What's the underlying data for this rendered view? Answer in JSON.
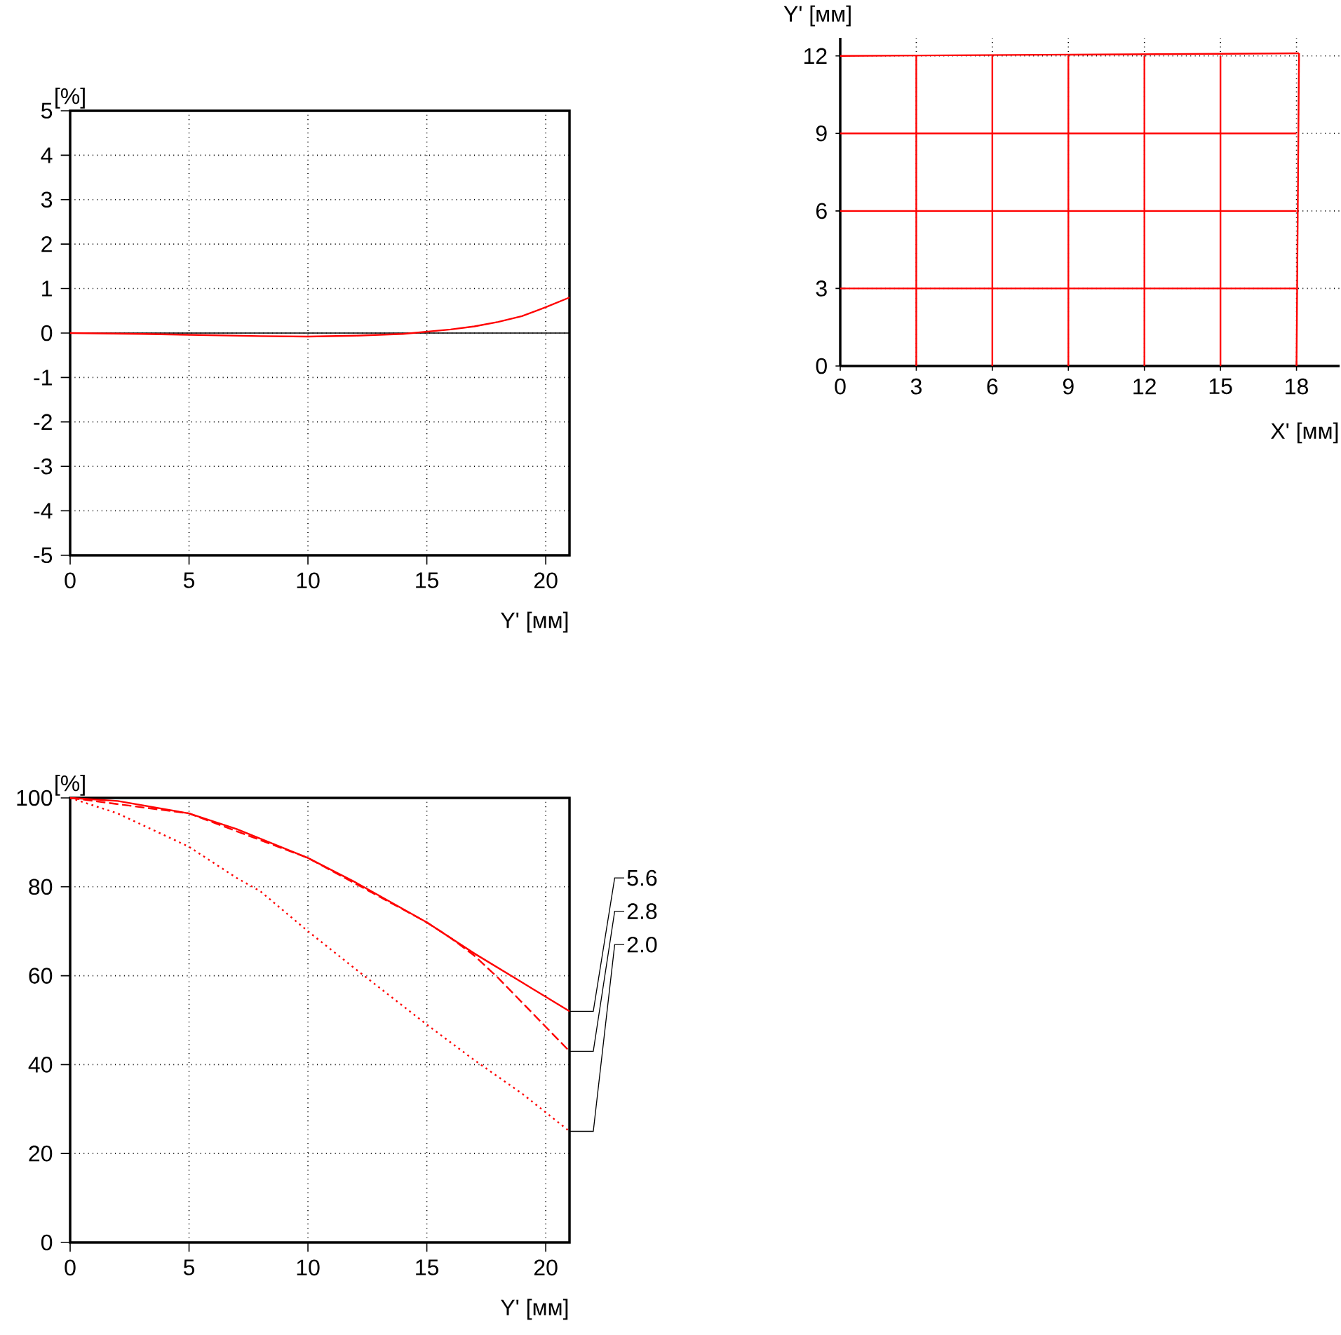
{
  "chart_data": [
    {
      "type": "line",
      "ylabel": "[%]",
      "xlabel": "Y' [мм]",
      "xlim": [
        0,
        21
      ],
      "ylim": [
        -5,
        5
      ],
      "xticks": [
        0,
        5,
        10,
        15,
        20
      ],
      "yticks": [
        -5,
        -4,
        -3,
        -2,
        -1,
        0,
        1,
        2,
        3,
        4,
        5
      ],
      "grid": true,
      "ref_lines": [
        {
          "axis": "y",
          "value": 0,
          "color": "#000000"
        }
      ],
      "series": [
        {
          "color": "#ff0000",
          "x": [
            0,
            3,
            5,
            8,
            10,
            12,
            14,
            15,
            16,
            17,
            18,
            19,
            20,
            21
          ],
          "values": [
            0,
            -0.02,
            -0.04,
            -0.07,
            -0.08,
            -0.06,
            -0.02,
            0.03,
            0.08,
            0.15,
            0.25,
            0.38,
            0.58,
            0.8
          ]
        }
      ]
    },
    {
      "type": "line",
      "ylabel": "Y' [мм]",
      "xlabel": "X' [мм]",
      "xlim": [
        0,
        19.7
      ],
      "ylim": [
        0,
        12.7
      ],
      "xticks": [
        0,
        3,
        6,
        9,
        12,
        15,
        18
      ],
      "yticks": [
        0,
        3,
        6,
        9,
        12
      ],
      "grid": true,
      "series": [
        {
          "color": "#ff0000",
          "x": [
            3,
            3
          ],
          "values": [
            0,
            12
          ]
        },
        {
          "color": "#ff0000",
          "x": [
            6,
            6
          ],
          "values": [
            0,
            12
          ]
        },
        {
          "color": "#ff0000",
          "x": [
            9,
            9
          ],
          "values": [
            0,
            12
          ]
        },
        {
          "color": "#ff0000",
          "x": [
            12,
            12
          ],
          "values": [
            0,
            12
          ]
        },
        {
          "color": "#ff0000",
          "x": [
            15,
            15
          ],
          "values": [
            0,
            12
          ]
        },
        {
          "color": "#ff0000",
          "x": [
            18,
            18.1
          ],
          "values": [
            0,
            12.1
          ]
        },
        {
          "color": "#ff0000",
          "x": [
            0,
            18
          ],
          "values": [
            3,
            3
          ]
        },
        {
          "color": "#ff0000",
          "x": [
            0,
            18
          ],
          "values": [
            6,
            6
          ]
        },
        {
          "color": "#ff0000",
          "x": [
            0,
            18
          ],
          "values": [
            9,
            9
          ]
        },
        {
          "color": "#ff0000",
          "x": [
            0,
            18.1
          ],
          "values": [
            12,
            12.1
          ]
        }
      ]
    },
    {
      "type": "line",
      "ylabel": "[%]",
      "xlabel": "Y' [мм]",
      "xlim": [
        0,
        21
      ],
      "ylim": [
        0,
        100
      ],
      "xticks": [
        0,
        5,
        10,
        15,
        20
      ],
      "yticks": [
        0,
        20,
        40,
        60,
        80,
        100
      ],
      "grid": true,
      "series": [
        {
          "name": "5.6",
          "color": "#ff0000",
          "line_style": "solid",
          "x": [
            0,
            2,
            5,
            7,
            10,
            12,
            15,
            17,
            19,
            21
          ],
          "values": [
            100,
            99.3,
            96.5,
            93,
            86.5,
            81,
            72,
            65,
            58.5,
            52
          ]
        },
        {
          "name": "2.8",
          "color": "#ff0000",
          "line_style": "dashed",
          "x": [
            0,
            5,
            10,
            15,
            16,
            17,
            18,
            19,
            20,
            21
          ],
          "values": [
            100,
            96.5,
            86.5,
            72,
            68.5,
            64.5,
            59.5,
            54,
            48.5,
            43
          ]
        },
        {
          "name": "2.0",
          "color": "#ff0000",
          "line_style": "dotted",
          "x": [
            0,
            2,
            5,
            7,
            8,
            10,
            12,
            15,
            17,
            19,
            21
          ],
          "values": [
            100,
            96.5,
            89,
            82,
            79,
            70,
            61.5,
            49,
            41,
            33.5,
            25
          ]
        }
      ]
    }
  ]
}
